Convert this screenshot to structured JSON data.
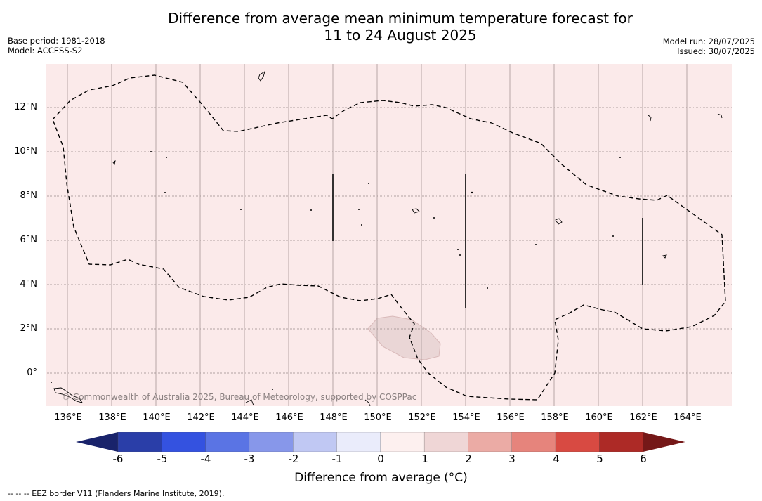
{
  "title_line1": "Difference from average mean minimum temperature forecast for",
  "title_line2": "11 to 24 August 2025",
  "base_period": "Base period: 1981-2018",
  "model": "Model: ACCESS-S2",
  "model_run": "Model run: 28/07/2025",
  "issued": "Issued: 30/07/2025",
  "copyright": "© Commonwealth of Australia 2025, Bureau of Meteorology, supported by COSPPac",
  "lat_labels": [
    "12°N",
    "10°N",
    "8°N",
    "6°N",
    "4°N",
    "2°N",
    "0°"
  ],
  "lon_labels": [
    "136°E",
    "138°E",
    "140°E",
    "142°E",
    "144°E",
    "146°E",
    "148°E",
    "150°E",
    "152°E",
    "154°E",
    "156°E",
    "158°E",
    "160°E",
    "162°E",
    "164°E"
  ],
  "colorbar": {
    "label": "Difference from average (°C)",
    "ticks": [
      "-6",
      "-5",
      "-4",
      "-3",
      "-2",
      "-1",
      "0",
      "1",
      "2",
      "3",
      "4",
      "5",
      "6"
    ],
    "colors": [
      "#19236b",
      "#2a3ea8",
      "#3452e0",
      "#5a74e4",
      "#8797ea",
      "#c0c8f3",
      "#eaecfb",
      "#fdf0ef",
      "#efd6d6",
      "#ebaba5",
      "#e6847c",
      "#d84a42",
      "#ad2a26",
      "#751818"
    ]
  },
  "map_background": "#fbeaea",
  "anomaly_patch_color": "#ead6d6",
  "footnote": "-- -- -- EEZ border V11 (Flanders Marine Institute, 2019)."
}
